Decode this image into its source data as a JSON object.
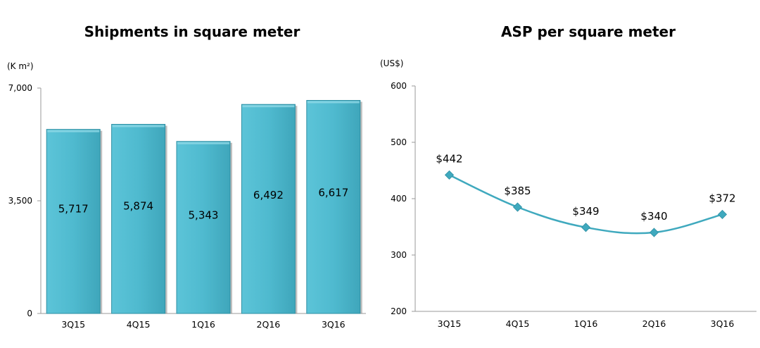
{
  "chart_data": [
    {
      "type": "bar",
      "title": "Shipments in square meter",
      "unit": "(K m²)",
      "categories": [
        "3Q15",
        "4Q15",
        "1Q16",
        "2Q16",
        "3Q16"
      ],
      "values": [
        5717,
        5874,
        5343,
        6492,
        6617
      ],
      "value_labels": [
        "5,717",
        "5,874",
        "5,343",
        "6,492",
        "6,617"
      ],
      "ylim": [
        0,
        7000
      ],
      "yticks": [
        0,
        3500,
        7000
      ],
      "ytick_labels": [
        "0",
        "3,500",
        "7,000"
      ],
      "grid": false,
      "color": "#4FBACF"
    },
    {
      "type": "line",
      "title": "ASP per square meter",
      "unit": "(US$)",
      "categories": [
        "3Q15",
        "4Q15",
        "1Q16",
        "2Q16",
        "3Q16"
      ],
      "values": [
        442,
        385,
        349,
        340,
        372
      ],
      "value_labels": [
        "$442",
        "$385",
        "$349",
        "$340",
        "$372"
      ],
      "ylim": [
        200,
        600
      ],
      "yticks": [
        200,
        300,
        400,
        500,
        600
      ],
      "ytick_labels": [
        "200",
        "300",
        "400",
        "500",
        "600"
      ],
      "grid": false,
      "color": "#3FA9BE"
    }
  ]
}
